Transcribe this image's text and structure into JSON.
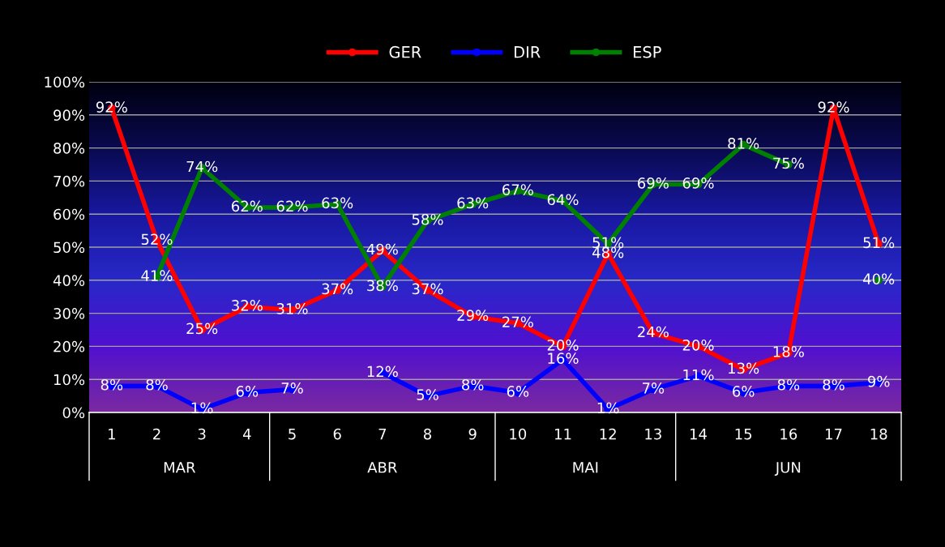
{
  "chart_data": {
    "type": "line",
    "categories": [
      "1",
      "2",
      "3",
      "4",
      "5",
      "6",
      "7",
      "8",
      "9",
      "10",
      "11",
      "12",
      "13",
      "14",
      "15",
      "16",
      "17",
      "18"
    ],
    "series": [
      {
        "name": "GER",
        "color": "#ff0000",
        "values": [
          92,
          52,
          25,
          32,
          31,
          37,
          49,
          37,
          29,
          27,
          20,
          48,
          24,
          20,
          13,
          18,
          92,
          51
        ],
        "value_labels": [
          "92%",
          "52%",
          "25%",
          "32%",
          "31%",
          "37%",
          "49%",
          "37%",
          "29%",
          "27%",
          "20%",
          "48%",
          "24%",
          "20%",
          "13%",
          "18%",
          "92%",
          "51%"
        ]
      },
      {
        "name": "DIR",
        "color": "#0000ff",
        "values": [
          8,
          8,
          1,
          6,
          7,
          null,
          12,
          5,
          8,
          6,
          16,
          1,
          7,
          11,
          6,
          8,
          8,
          9
        ],
        "value_labels": [
          "8%",
          "8%",
          "1%",
          "6%",
          "7%",
          null,
          "12%",
          "5%",
          "8%",
          "6%",
          "16%",
          "1%",
          "7%",
          "11%",
          "6%",
          "8%",
          "8%",
          "9%"
        ]
      },
      {
        "name": "ESP",
        "color": "#008000",
        "values": [
          null,
          41,
          74,
          62,
          62,
          63,
          38,
          58,
          63,
          67,
          64,
          51,
          69,
          69,
          81,
          75,
          null,
          40
        ],
        "value_labels": [
          null,
          "41%",
          "74%",
          "62%",
          "62%",
          "63%",
          "38%",
          "58%",
          "63%",
          "67%",
          "64%",
          "51%",
          "69%",
          "69%",
          "81%",
          "75%",
          null,
          "40%"
        ]
      }
    ],
    "ylim": [
      0,
      100
    ],
    "yticks": [
      {
        "value": 0,
        "label": "0%"
      },
      {
        "value": 10,
        "label": "10%"
      },
      {
        "value": 20,
        "label": "20%"
      },
      {
        "value": 30,
        "label": "30%"
      },
      {
        "value": 40,
        "label": "40%"
      },
      {
        "value": 50,
        "label": "50%"
      },
      {
        "value": 60,
        "label": "60%"
      },
      {
        "value": 70,
        "label": "70%"
      },
      {
        "value": 80,
        "label": "80%"
      },
      {
        "value": 90,
        "label": "90%"
      },
      {
        "value": 100,
        "label": "100%"
      }
    ],
    "annotations": [
      "MAR",
      "ABR",
      "MAI",
      "JUN"
    ],
    "grid": "y",
    "legend": "top",
    "marker": "circle",
    "line_style": "solid"
  }
}
